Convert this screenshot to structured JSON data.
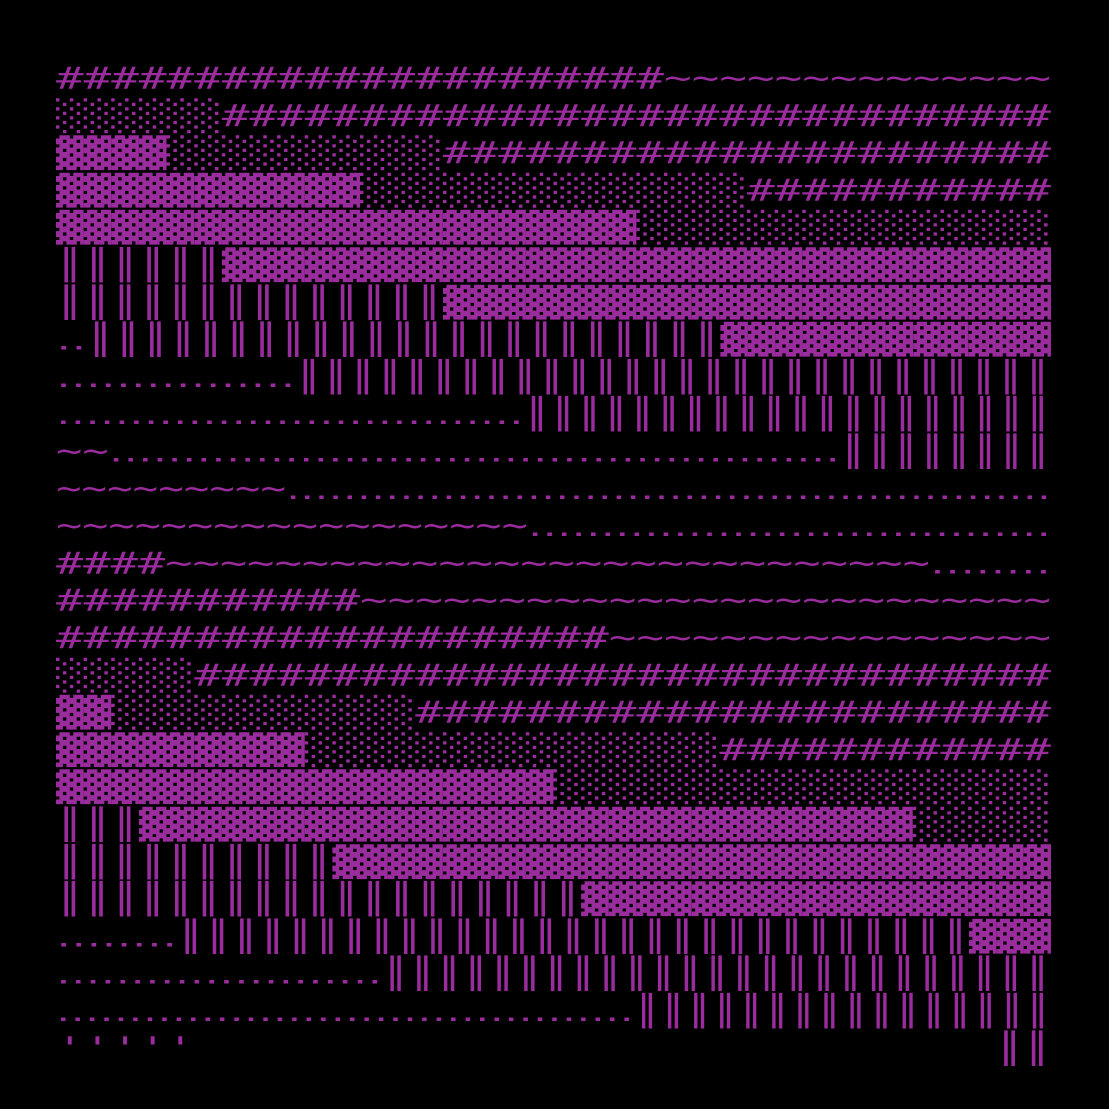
{
  "rows": [
    "######################~~~~~~~~~~~~~~",
    "░░░░░░##############################",
    "▓▓▓▓░░░░░░░░░░######################",
    "▓▓▓▓▓▓▓▓▓▓▓░░░░░░░░░░░░░░###########",
    "▓▓▓▓▓▓▓▓▓▓▓▓▓▓▓▓▓▓▓▓▓░░░░░░░░░░░░░░░",
    "║║║║║║▓▓▓▓▓▓▓▓▓▓▓▓▓▓▓▓▓▓▓▓▓▓▓▓▓▓▓▓▓▓",
    "║║║║║║║║║║║║║║▓▓▓▓▓▓▓▓▓▓▓▓▓▓▓▓▓▓▓▓▓▓",
    "‥║║║║║║║║║║║║║║║║║║║║║║║▓▓▓▓▓▓▓▓▓▓▓▓",
    "‥‥‥‥‥‥‥‥║║║║║║║║║║║║║║║║║║║║║║║║║║║║",
    "‥‥‥‥‥‥‥‥‥‥‥‥‥‥‥‥║║║║║║║║║║║║║║║║║║║║",
    "~~‥‥‥‥‥‥‥‥‥‥‥‥‥‥‥‥‥‥‥‥‥‥‥‥‥║║║║║║║║",
    "~~~~~~~~~‥‥‥‥‥‥‥‥‥‥‥‥‥‥‥‥‥‥‥‥‥‥‥‥‥‥‥",
    "~~~~~~~~~~~~~~~~~~‥‥‥‥‥‥‥‥‥‥‥‥‥‥‥‥‥‥",
    "####~~~~~~~~~~~~~~~~~~~~~~~~~~~~‥‥‥‥",
    "###########~~~~~~~~~~~~~~~~~~~~~~~~~",
    "####################~~~~~~~~~~~~~~~~",
    "░░░░░###############################",
    "▓▓░░░░░░░░░░░#######################",
    "▓▓▓▓▓▓▓▓▓░░░░░░░░░░░░░░░############",
    "▓▓▓▓▓▓▓▓▓▓▓▓▓▓▓▓▓▓░░░░░░░░░░░░░░░░░░",
    "║║║▓▓▓▓▓▓▓▓▓▓▓▓▓▓▓▓▓▓▓▓▓▓▓▓▓▓▓▓░░░░░",
    "║║║║║║║║║║▓▓▓▓▓▓▓▓▓▓▓▓▓▓▓▓▓▓▓▓▓▓▓▓▓▓",
    "║║║║║║║║║║║║║║║║║║║▓▓▓▓▓▓▓▓▓▓▓▓▓▓▓▓▓",
    "‥‥‥‥║║║║║║║║║║║║║║║║║║║║║║║║║║║║║▓▓▓",
    "‥‥‥‥‥‥‥‥‥‥‥║║║║║║║║║║║║║║║║║║║║║║║║║",
    "‥‥‥‥‥‥‥‥‥‥‥‥‥‥‥‥‥‥‥‥║║║║║║║║║║║║║║║║",
    "'''''                             ║║"
  ]
}
